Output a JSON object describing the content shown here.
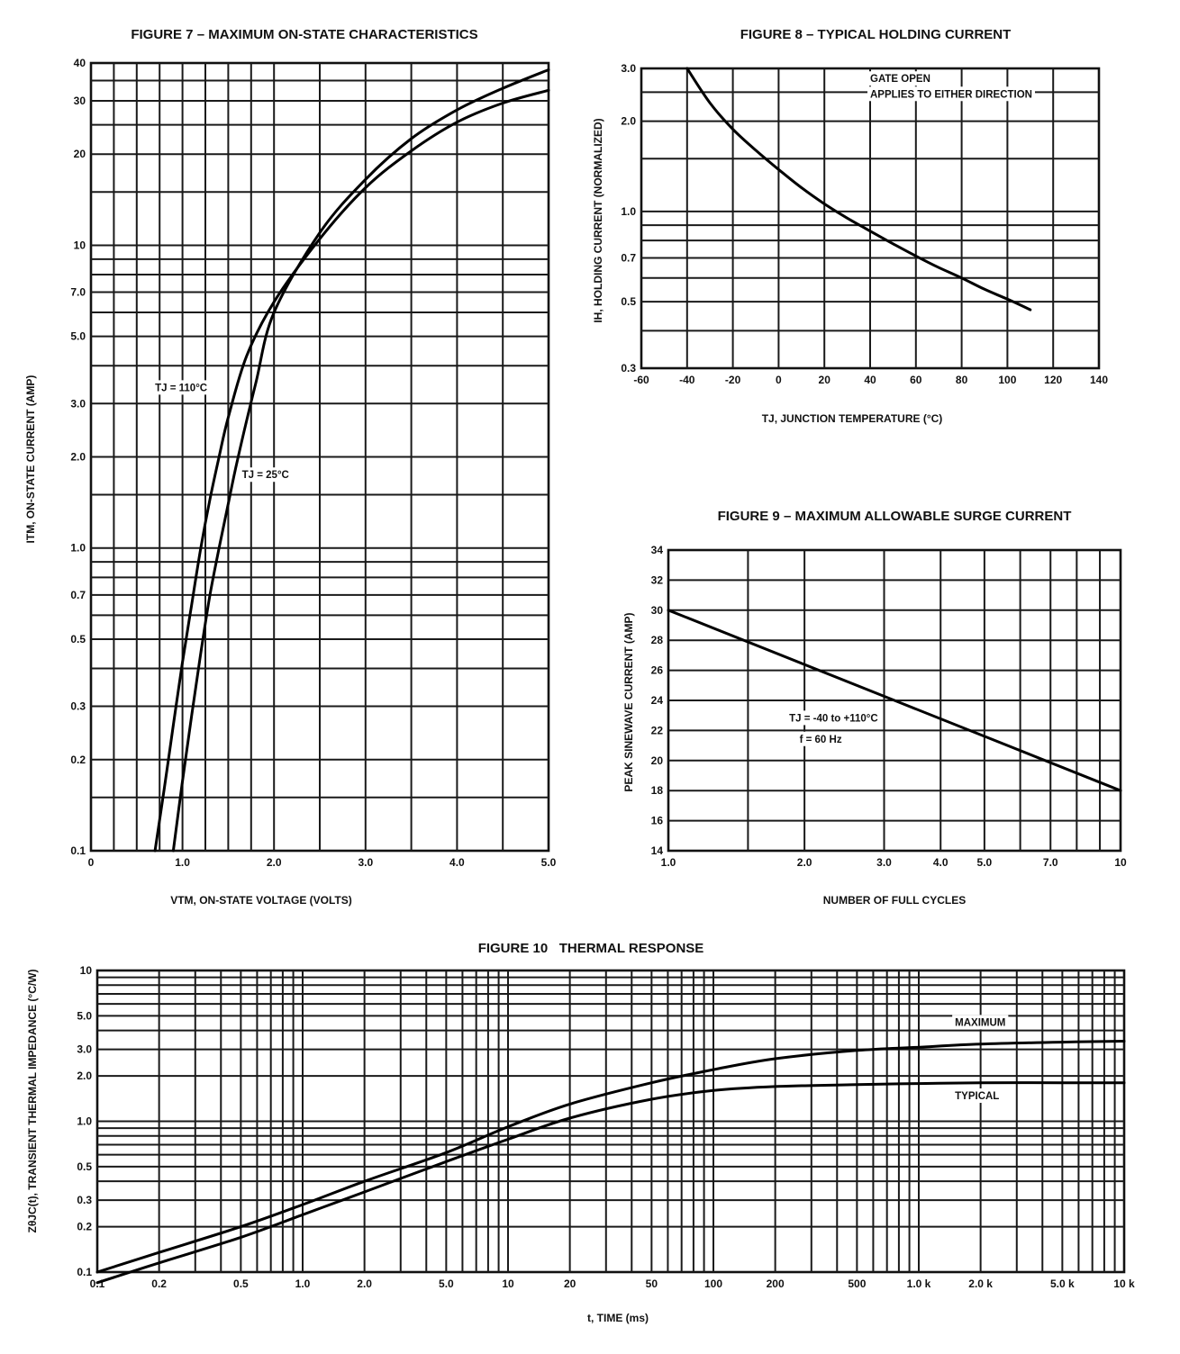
{
  "chart_data": [
    {
      "id": "fig7",
      "type": "line",
      "title": "FIGURE 7 – MAXIMUM ON-STATE CHARACTERISTICS",
      "xlabel": "VTM, ON-STATE VOLTAGE (VOLTS)",
      "ylabel": "ITM, ON-STATE CURRENT (AMP)",
      "xscale": "linear",
      "yscale": "log",
      "xlim": [
        0,
        5.0
      ],
      "ylim": [
        0.1,
        40
      ],
      "x_ticks": [
        0,
        1.0,
        2.0,
        3.0,
        4.0,
        5.0
      ],
      "x_tick_labels": [
        "0",
        "1.0",
        "2.0",
        "3.0",
        "4.0",
        "5.0"
      ],
      "y_ticks": [
        0.1,
        0.2,
        0.3,
        0.5,
        0.7,
        1.0,
        2.0,
        3.0,
        5.0,
        7.0,
        10,
        20,
        30,
        40
      ],
      "y_tick_labels": [
        "0.1",
        "0.2",
        "0.3",
        "0.5",
        "0.7",
        "1.0",
        "2.0",
        "3.0",
        "5.0",
        "7.0",
        "10",
        "20",
        "30",
        "40"
      ],
      "x_grid": [
        0.25,
        0.5,
        0.75,
        1.0,
        1.25,
        1.5,
        1.75,
        2.0,
        2.5,
        3.0,
        3.5,
        4.0,
        4.5
      ],
      "y_grid": [
        0.15,
        0.2,
        0.3,
        0.4,
        0.5,
        0.6,
        0.7,
        0.8,
        0.9,
        1.0,
        1.5,
        2.0,
        3.0,
        4.0,
        5.0,
        6.0,
        7.0,
        8.0,
        9.0,
        10,
        15,
        20,
        25,
        30,
        35
      ],
      "series": [
        {
          "name": "TJ = 110°C",
          "x": [
            0.7,
            0.8,
            0.9,
            1.0,
            1.1,
            1.2,
            1.3,
            1.4,
            1.5,
            1.7,
            2.0,
            2.5,
            3.0,
            3.5,
            4.0,
            4.5,
            5.0
          ],
          "y": [
            0.1,
            0.16,
            0.26,
            0.42,
            0.65,
            1.0,
            1.45,
            2.0,
            2.7,
            4.3,
            6.5,
            10.5,
            15.5,
            20.5,
            25.5,
            29.5,
            32.5
          ]
        },
        {
          "name": "TJ = 25°C",
          "x": [
            0.9,
            1.0,
            1.1,
            1.2,
            1.3,
            1.4,
            1.5,
            1.6,
            1.8,
            2.0,
            2.5,
            3.0,
            3.5,
            4.0,
            4.5,
            5.0
          ],
          "y": [
            0.1,
            0.17,
            0.28,
            0.45,
            0.7,
            1.0,
            1.4,
            1.95,
            3.5,
            6.0,
            11.0,
            16.5,
            22.5,
            28.0,
            33.0,
            38.0
          ]
        }
      ],
      "annotations": [
        {
          "text": "TJ = 110°C",
          "x": 0.7,
          "y": 3.3
        },
        {
          "text": "TJ = 25°C",
          "x": 1.65,
          "y": 1.7
        }
      ]
    },
    {
      "id": "fig8",
      "type": "line",
      "title": "FIGURE 8 – TYPICAL HOLDING CURRENT",
      "xlabel": "TJ, JUNCTION TEMPERATURE (°C)",
      "ylabel": "IH, HOLDING CURRENT (NORMALIZED)",
      "xscale": "linear",
      "yscale": "log",
      "xlim": [
        -60,
        140
      ],
      "ylim": [
        0.3,
        3.0
      ],
      "x_ticks": [
        -60,
        -40,
        -20,
        0,
        20,
        40,
        60,
        80,
        100,
        120,
        140
      ],
      "x_tick_labels": [
        "-60",
        "-40",
        "-20",
        "0",
        "20",
        "40",
        "60",
        "80",
        "100",
        "120",
        "140"
      ],
      "y_ticks": [
        0.3,
        0.5,
        0.7,
        1.0,
        2.0,
        3.0
      ],
      "y_tick_labels": [
        "0.3",
        "0.5",
        "0.7",
        "1.0",
        "2.0",
        "3.0"
      ],
      "x_grid": [
        -40,
        -20,
        0,
        20,
        40,
        60,
        80,
        100,
        120
      ],
      "y_grid": [
        0.4,
        0.5,
        0.6,
        0.7,
        0.8,
        0.9,
        1.0,
        1.5,
        2.0,
        2.5
      ],
      "series": [
        {
          "name": "IH",
          "x": [
            -40,
            -30,
            -20,
            -10,
            0,
            10,
            20,
            30,
            40,
            50,
            60,
            70,
            80,
            90,
            100,
            110
          ],
          "y": [
            3.0,
            2.3,
            1.88,
            1.6,
            1.38,
            1.2,
            1.06,
            0.95,
            0.86,
            0.78,
            0.71,
            0.65,
            0.6,
            0.55,
            0.51,
            0.47
          ]
        }
      ],
      "annotations": [
        {
          "text": "GATE OPEN",
          "x": 40,
          "y": 2.7
        },
        {
          "text": "APPLIES TO EITHER DIRECTION",
          "x": 40,
          "y": 2.4
        }
      ]
    },
    {
      "id": "fig9",
      "type": "line",
      "title": "FIGURE 9 – MAXIMUM ALLOWABLE SURGE CURRENT",
      "xlabel": "NUMBER OF FULL CYCLES",
      "ylabel": "PEAK SINEWAVE CURRENT (AMP)",
      "xscale": "log",
      "yscale": "linear",
      "xlim": [
        1.0,
        10
      ],
      "ylim": [
        14,
        34
      ],
      "x_ticks": [
        1.0,
        2.0,
        3.0,
        4.0,
        5.0,
        7.0,
        10
      ],
      "x_tick_labels": [
        "1.0",
        "2.0",
        "3.0",
        "4.0",
        "5.0",
        "7.0",
        "10"
      ],
      "y_ticks": [
        14,
        16,
        18,
        20,
        22,
        24,
        26,
        28,
        30,
        32,
        34
      ],
      "y_tick_labels": [
        "14",
        "16",
        "18",
        "20",
        "22",
        "24",
        "26",
        "28",
        "30",
        "32",
        "34"
      ],
      "x_grid": [
        1.5,
        2,
        3,
        4,
        5,
        6,
        7,
        8,
        9
      ],
      "y_grid": [
        16,
        18,
        20,
        22,
        24,
        26,
        28,
        30,
        32
      ],
      "series": [
        {
          "name": "Surge",
          "x": [
            1.0,
            10
          ],
          "y": [
            30,
            18
          ]
        }
      ],
      "annotations": [
        {
          "text": "TJ = -40 to +110°C",
          "x": 1.85,
          "y": 22.6
        },
        {
          "text": "f = 60 Hz",
          "x": 1.95,
          "y": 21.2
        }
      ]
    },
    {
      "id": "fig10",
      "type": "line",
      "title": "FIGURE 10   THERMAL RESPONSE",
      "xlabel": "t, TIME (ms)",
      "ylabel": "ZθJC(t), TRANSIENT THERMAL IMPEDANCE (°C/W)",
      "xscale": "log",
      "yscale": "log",
      "xlim": [
        0.1,
        10000
      ],
      "ylim": [
        0.1,
        10
      ],
      "x_ticks": [
        0.1,
        0.2,
        0.5,
        1.0,
        2.0,
        5.0,
        10,
        20,
        50,
        100,
        200,
        500,
        1000,
        2000,
        5000,
        10000
      ],
      "x_tick_labels": [
        "0.1",
        "0.2",
        "0.5",
        "1.0",
        "2.0",
        "5.0",
        "10",
        "20",
        "50",
        "100",
        "200",
        "500",
        "1.0 k",
        "2.0 k",
        "5.0 k",
        "10 k"
      ],
      "y_ticks": [
        0.1,
        0.2,
        0.3,
        0.5,
        1.0,
        2.0,
        3.0,
        5.0,
        10
      ],
      "y_tick_labels": [
        "0.1",
        "0.2",
        "0.3",
        "0.5",
        "1.0",
        "2.0",
        "3.0",
        "5.0",
        "10"
      ],
      "x_grid_decades": [
        0.1,
        1,
        10,
        100,
        1000
      ],
      "x_grid_multiples": [
        2,
        3,
        4,
        5,
        6,
        7,
        8,
        9
      ],
      "y_grid": [
        0.2,
        0.3,
        0.4,
        0.5,
        0.6,
        0.7,
        0.8,
        0.9,
        1,
        2,
        3,
        4,
        5,
        6,
        7,
        8,
        9
      ],
      "series": [
        {
          "name": "MAXIMUM",
          "x": [
            0.1,
            0.2,
            0.5,
            1,
            2,
            5,
            10,
            20,
            50,
            100,
            200,
            500,
            1000,
            2000,
            5000,
            10000
          ],
          "y": [
            0.1,
            0.135,
            0.2,
            0.28,
            0.4,
            0.62,
            0.92,
            1.3,
            1.8,
            2.2,
            2.6,
            2.95,
            3.1,
            3.25,
            3.35,
            3.4
          ]
        },
        {
          "name": "TYPICAL",
          "x": [
            0.1,
            0.2,
            0.5,
            1,
            2,
            5,
            10,
            20,
            50,
            100,
            200,
            500,
            1000,
            2000,
            5000,
            10000
          ],
          "y": [
            0.085,
            0.115,
            0.17,
            0.24,
            0.34,
            0.54,
            0.76,
            1.05,
            1.4,
            1.6,
            1.7,
            1.75,
            1.78,
            1.8,
            1.8,
            1.8
          ]
        }
      ],
      "annotations": [
        {
          "text": "MAXIMUM",
          "x": 1500,
          "y": 4.3
        },
        {
          "text": "TYPICAL",
          "x": 1500,
          "y": 1.4
        }
      ]
    }
  ]
}
